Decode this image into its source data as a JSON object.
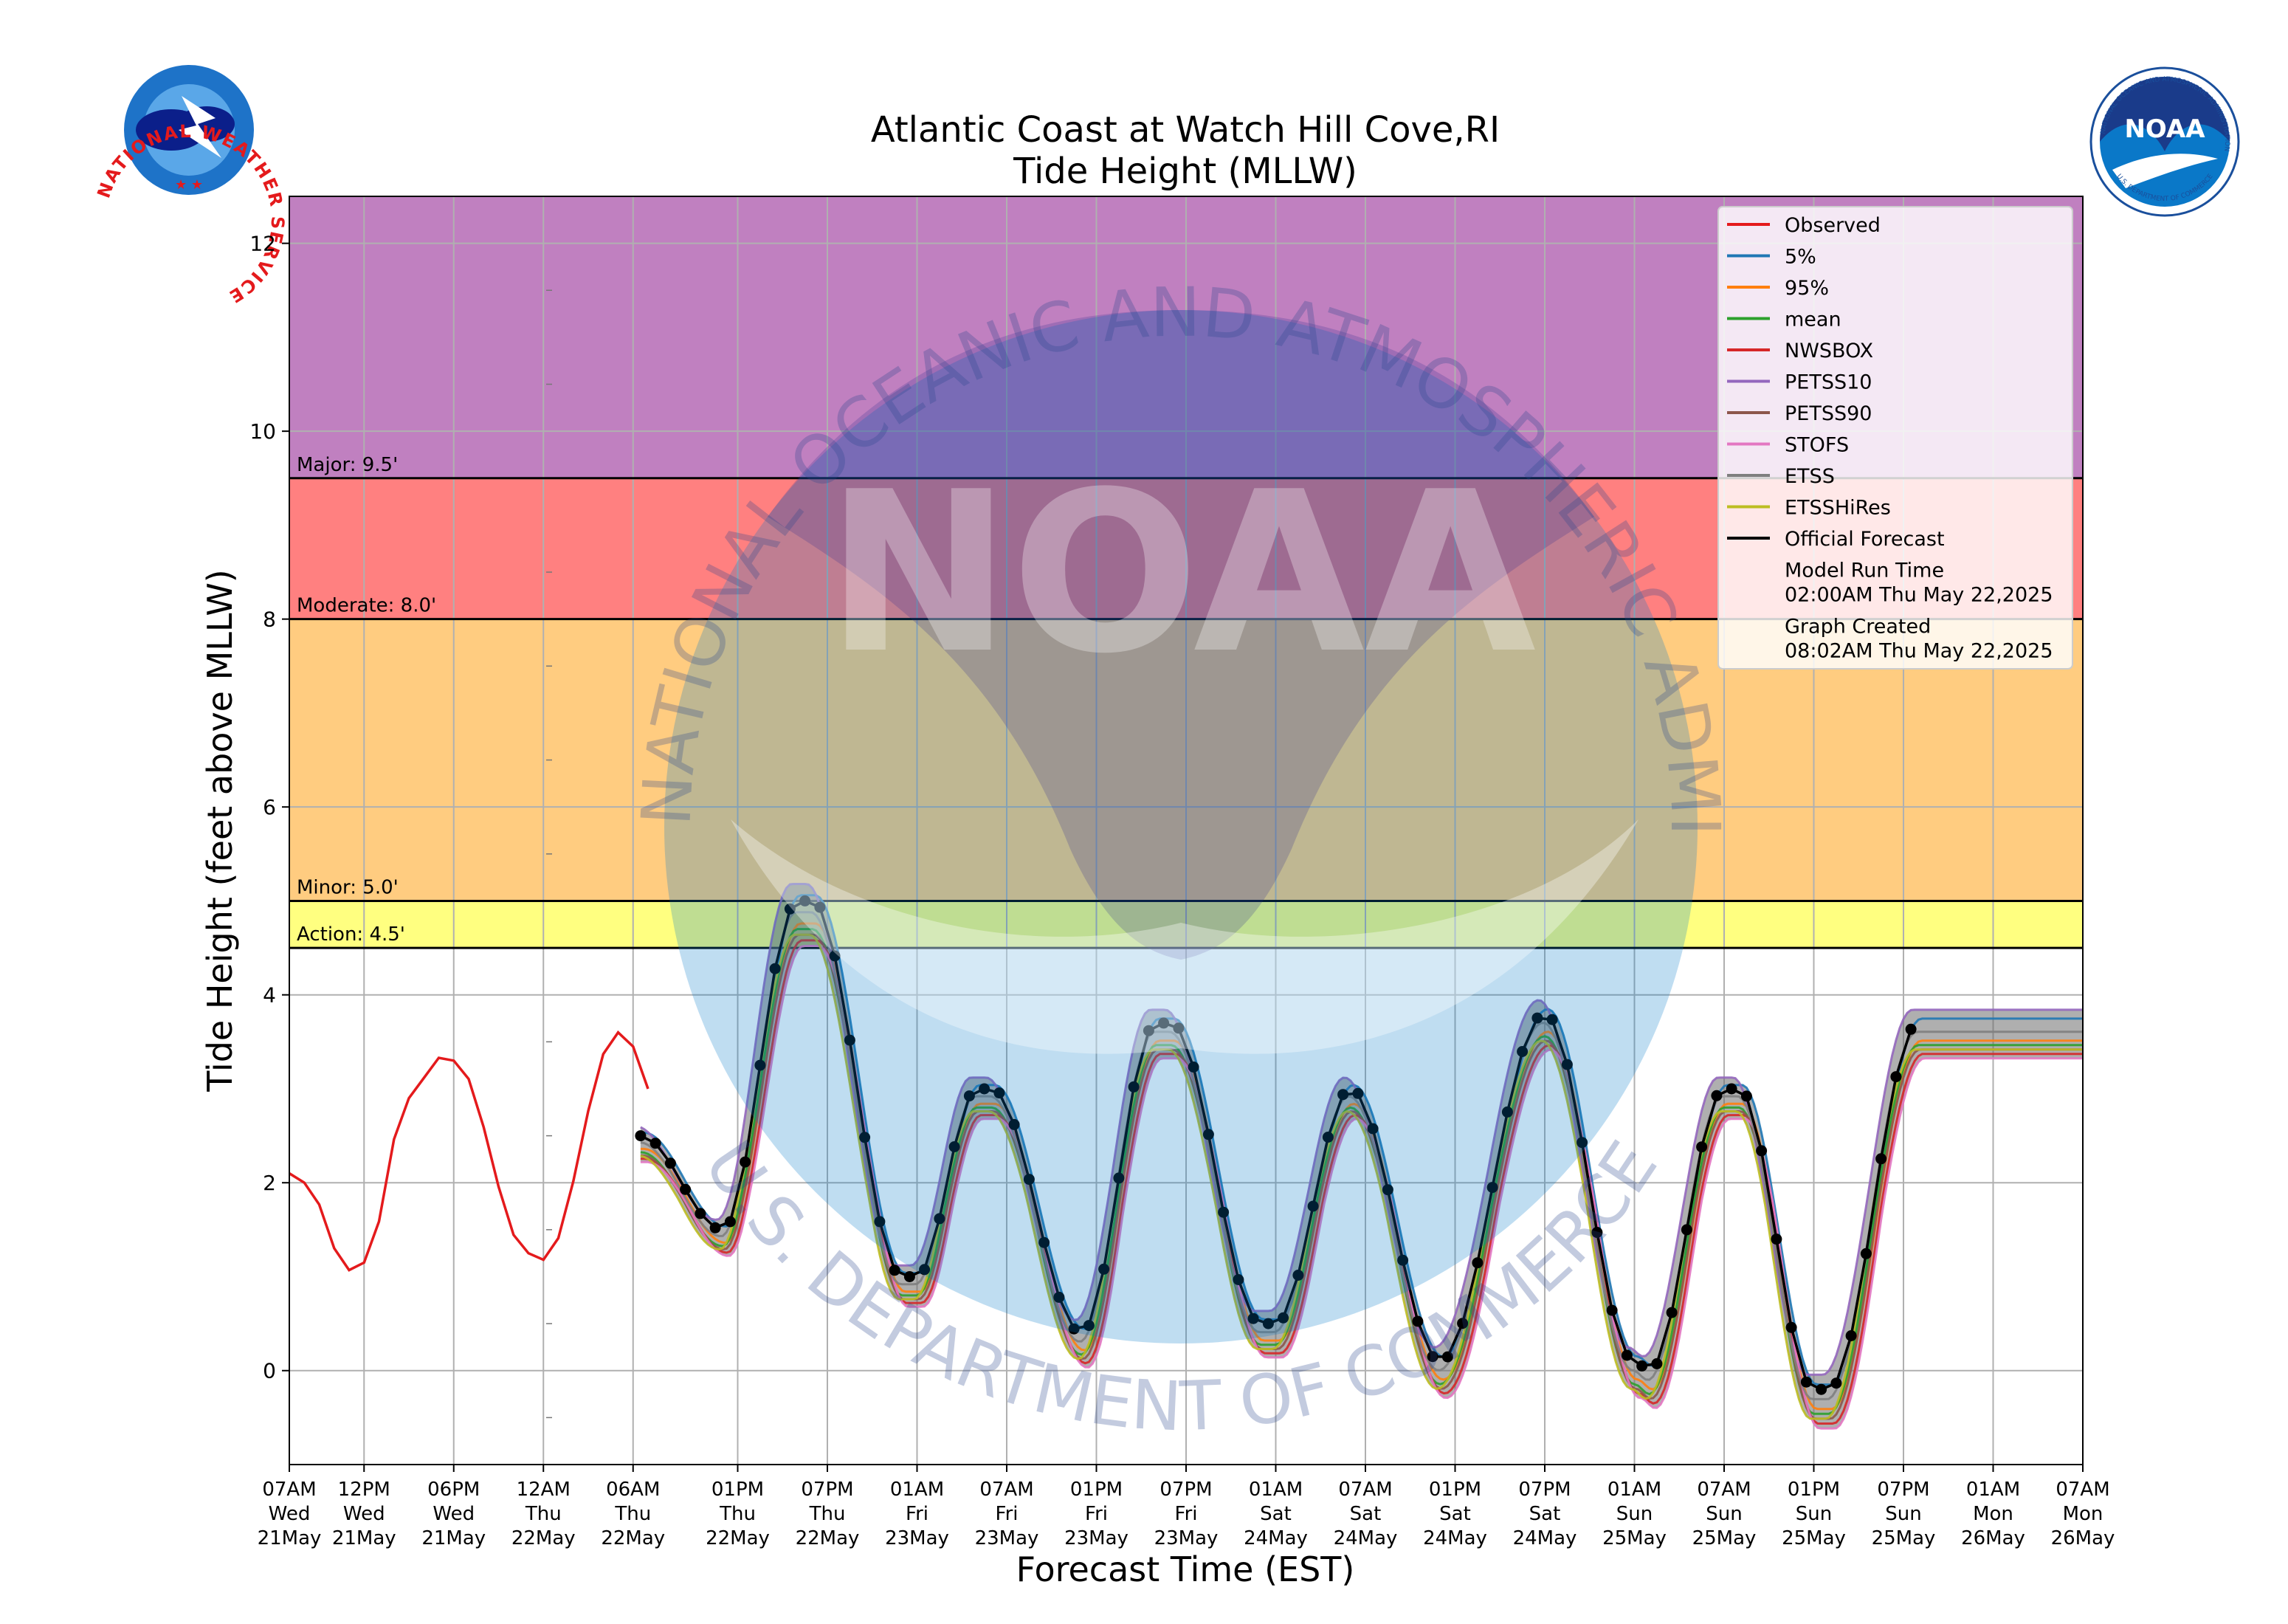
{
  "chart_data": {
    "type": "line",
    "title": "Atlantic Coast at Watch Hill Cove,RI",
    "subtitle": "Tide Height (MLLW)",
    "xlabel": "Forecast Time (EST)",
    "ylabel": "Tide Height (feet above MLLW)",
    "ylim": [
      -1,
      12.5
    ],
    "xlim_hours": [
      0,
      120
    ],
    "x_unit": "hours after 07AM Wed 21May (EST)",
    "yticks": [
      0,
      2,
      4,
      6,
      8,
      10,
      12
    ],
    "grid": true,
    "legend_position": "top-right",
    "xticks": [
      {
        "h": 0,
        "lines": [
          "07AM",
          "Wed",
          "21May"
        ]
      },
      {
        "h": 5,
        "lines": [
          "12PM",
          "Wed",
          "21May"
        ]
      },
      {
        "h": 11,
        "lines": [
          "06PM",
          "Wed",
          "21May"
        ]
      },
      {
        "h": 17,
        "lines": [
          "12AM",
          "Thu",
          "22May"
        ]
      },
      {
        "h": 23,
        "lines": [
          "06AM",
          "Thu",
          "22May"
        ]
      },
      {
        "h": 30,
        "lines": [
          "01PM",
          "Thu",
          "22May"
        ]
      },
      {
        "h": 36,
        "lines": [
          "07PM",
          "Thu",
          "22May"
        ]
      },
      {
        "h": 42,
        "lines": [
          "01AM",
          "Fri",
          "23May"
        ]
      },
      {
        "h": 48,
        "lines": [
          "07AM",
          "Fri",
          "23May"
        ]
      },
      {
        "h": 54,
        "lines": [
          "01PM",
          "Fri",
          "23May"
        ]
      },
      {
        "h": 60,
        "lines": [
          "07PM",
          "Fri",
          "23May"
        ]
      },
      {
        "h": 66,
        "lines": [
          "01AM",
          "Sat",
          "24May"
        ]
      },
      {
        "h": 72,
        "lines": [
          "07AM",
          "Sat",
          "24May"
        ]
      },
      {
        "h": 78,
        "lines": [
          "01PM",
          "Sat",
          "24May"
        ]
      },
      {
        "h": 84,
        "lines": [
          "07PM",
          "Sat",
          "24May"
        ]
      },
      {
        "h": 90,
        "lines": [
          "01AM",
          "Sun",
          "25May"
        ]
      },
      {
        "h": 96,
        "lines": [
          "07AM",
          "Sun",
          "25May"
        ]
      },
      {
        "h": 102,
        "lines": [
          "01PM",
          "Sun",
          "25May"
        ]
      },
      {
        "h": 108,
        "lines": [
          "07PM",
          "Sun",
          "25May"
        ]
      },
      {
        "h": 114,
        "lines": [
          "01AM",
          "Mon",
          "26May"
        ]
      },
      {
        "h": 120,
        "lines": [
          "07AM",
          "Mon",
          "26May"
        ]
      }
    ],
    "thresholds": [
      {
        "label": "Action: 4.5'",
        "value": 4.5,
        "color": "#ffff80"
      },
      {
        "label": "Minor: 5.0'",
        "value": 5.0,
        "color": "#ffcc80"
      },
      {
        "label": "Moderate: 8.0'",
        "value": 8.0,
        "color": "#ff8080"
      },
      {
        "label": "Major: 9.5'",
        "value": 9.5,
        "color": "#c080c0"
      }
    ],
    "forecast_extrema": [
      [
        23.5,
        2.5
      ],
      [
        29,
        1.5
      ],
      [
        34,
        5.0
      ],
      [
        35,
        5.0
      ],
      [
        41,
        1.0
      ],
      [
        42,
        1.0
      ],
      [
        46,
        3.0
      ],
      [
        47,
        3.0
      ],
      [
        53,
        0.4
      ],
      [
        58,
        3.7
      ],
      [
        59,
        3.7
      ],
      [
        65,
        0.5
      ],
      [
        66,
        0.5
      ],
      [
        71,
        3.0
      ],
      [
        77,
        0.1
      ],
      [
        84,
        3.8
      ],
      [
        90,
        0.1
      ],
      [
        91,
        0.0
      ],
      [
        96,
        3.0
      ],
      [
        97,
        3.0
      ],
      [
        102,
        -0.2
      ],
      [
        103,
        -0.2
      ],
      [
        109,
        3.7
      ]
    ],
    "observed_extrema": [
      [
        0,
        2.1
      ],
      [
        1,
        2.0
      ],
      [
        4,
        1.07
      ],
      [
        5,
        1.15
      ],
      [
        8,
        2.9
      ],
      [
        10,
        3.33
      ],
      [
        11,
        3.3
      ],
      [
        16,
        1.25
      ],
      [
        17,
        1.18
      ],
      [
        22,
        3.6
      ],
      [
        23,
        3.45
      ],
      [
        24,
        3.0
      ]
    ],
    "series": [
      {
        "name": "Observed",
        "color": "#e41a1c"
      },
      {
        "name": "5%",
        "color": "#1f77b4",
        "offset": 0.05,
        "shift": 0.2
      },
      {
        "name": "95%",
        "color": "#ff7f0e",
        "offset": -0.2,
        "shift": 0.2
      },
      {
        "name": "mean",
        "color": "#2ca02c",
        "offset": -0.25,
        "shift": 0.0
      },
      {
        "name": "NWSBOX",
        "color": "#d62728",
        "offset": -0.35,
        "shift": 0.3
      },
      {
        "name": "PETSS10",
        "color": "#9467bd",
        "offset": 0.15,
        "shift": -0.4
      },
      {
        "name": "PETSS90",
        "color": "#8c564b",
        "offset": -0.3,
        "shift": 0.1
      },
      {
        "name": "STOFS",
        "color": "#e377c2",
        "offset": -0.4,
        "shift": 0.4
      },
      {
        "name": "ETSS",
        "color": "#7f7f7f",
        "offset": -0.1,
        "shift": -0.1
      },
      {
        "name": "ETSSHiRes",
        "color": "#bcbd22",
        "offset": -0.3,
        "shift": -0.2
      },
      {
        "name": "Official Forecast",
        "color": "#000000"
      }
    ],
    "legend_notes": [
      {
        "label": "Model Run Time",
        "value": "02:00AM Thu May 22,2025"
      },
      {
        "label": "Graph Created",
        "value": "08:02AM Thu May 22,2025"
      }
    ]
  },
  "logos": {
    "nws": {
      "text": "NATIONAL WEATHER SERVICE"
    },
    "noaa": {
      "text": "NOAA",
      "ring_text": "NATIONAL OCEANIC AND ATMOSPHERIC ADMINISTRATION",
      "dept_text": "U.S. DEPARTMENT OF COMMERCE"
    }
  },
  "watermark": {
    "text": "NOAA",
    "ring_text": "NATIONAL OCEANIC AND ATMOSPHERIC ADMINISTRATION",
    "dept_text": "U.S. DEPARTMENT OF COMMERCE"
  }
}
